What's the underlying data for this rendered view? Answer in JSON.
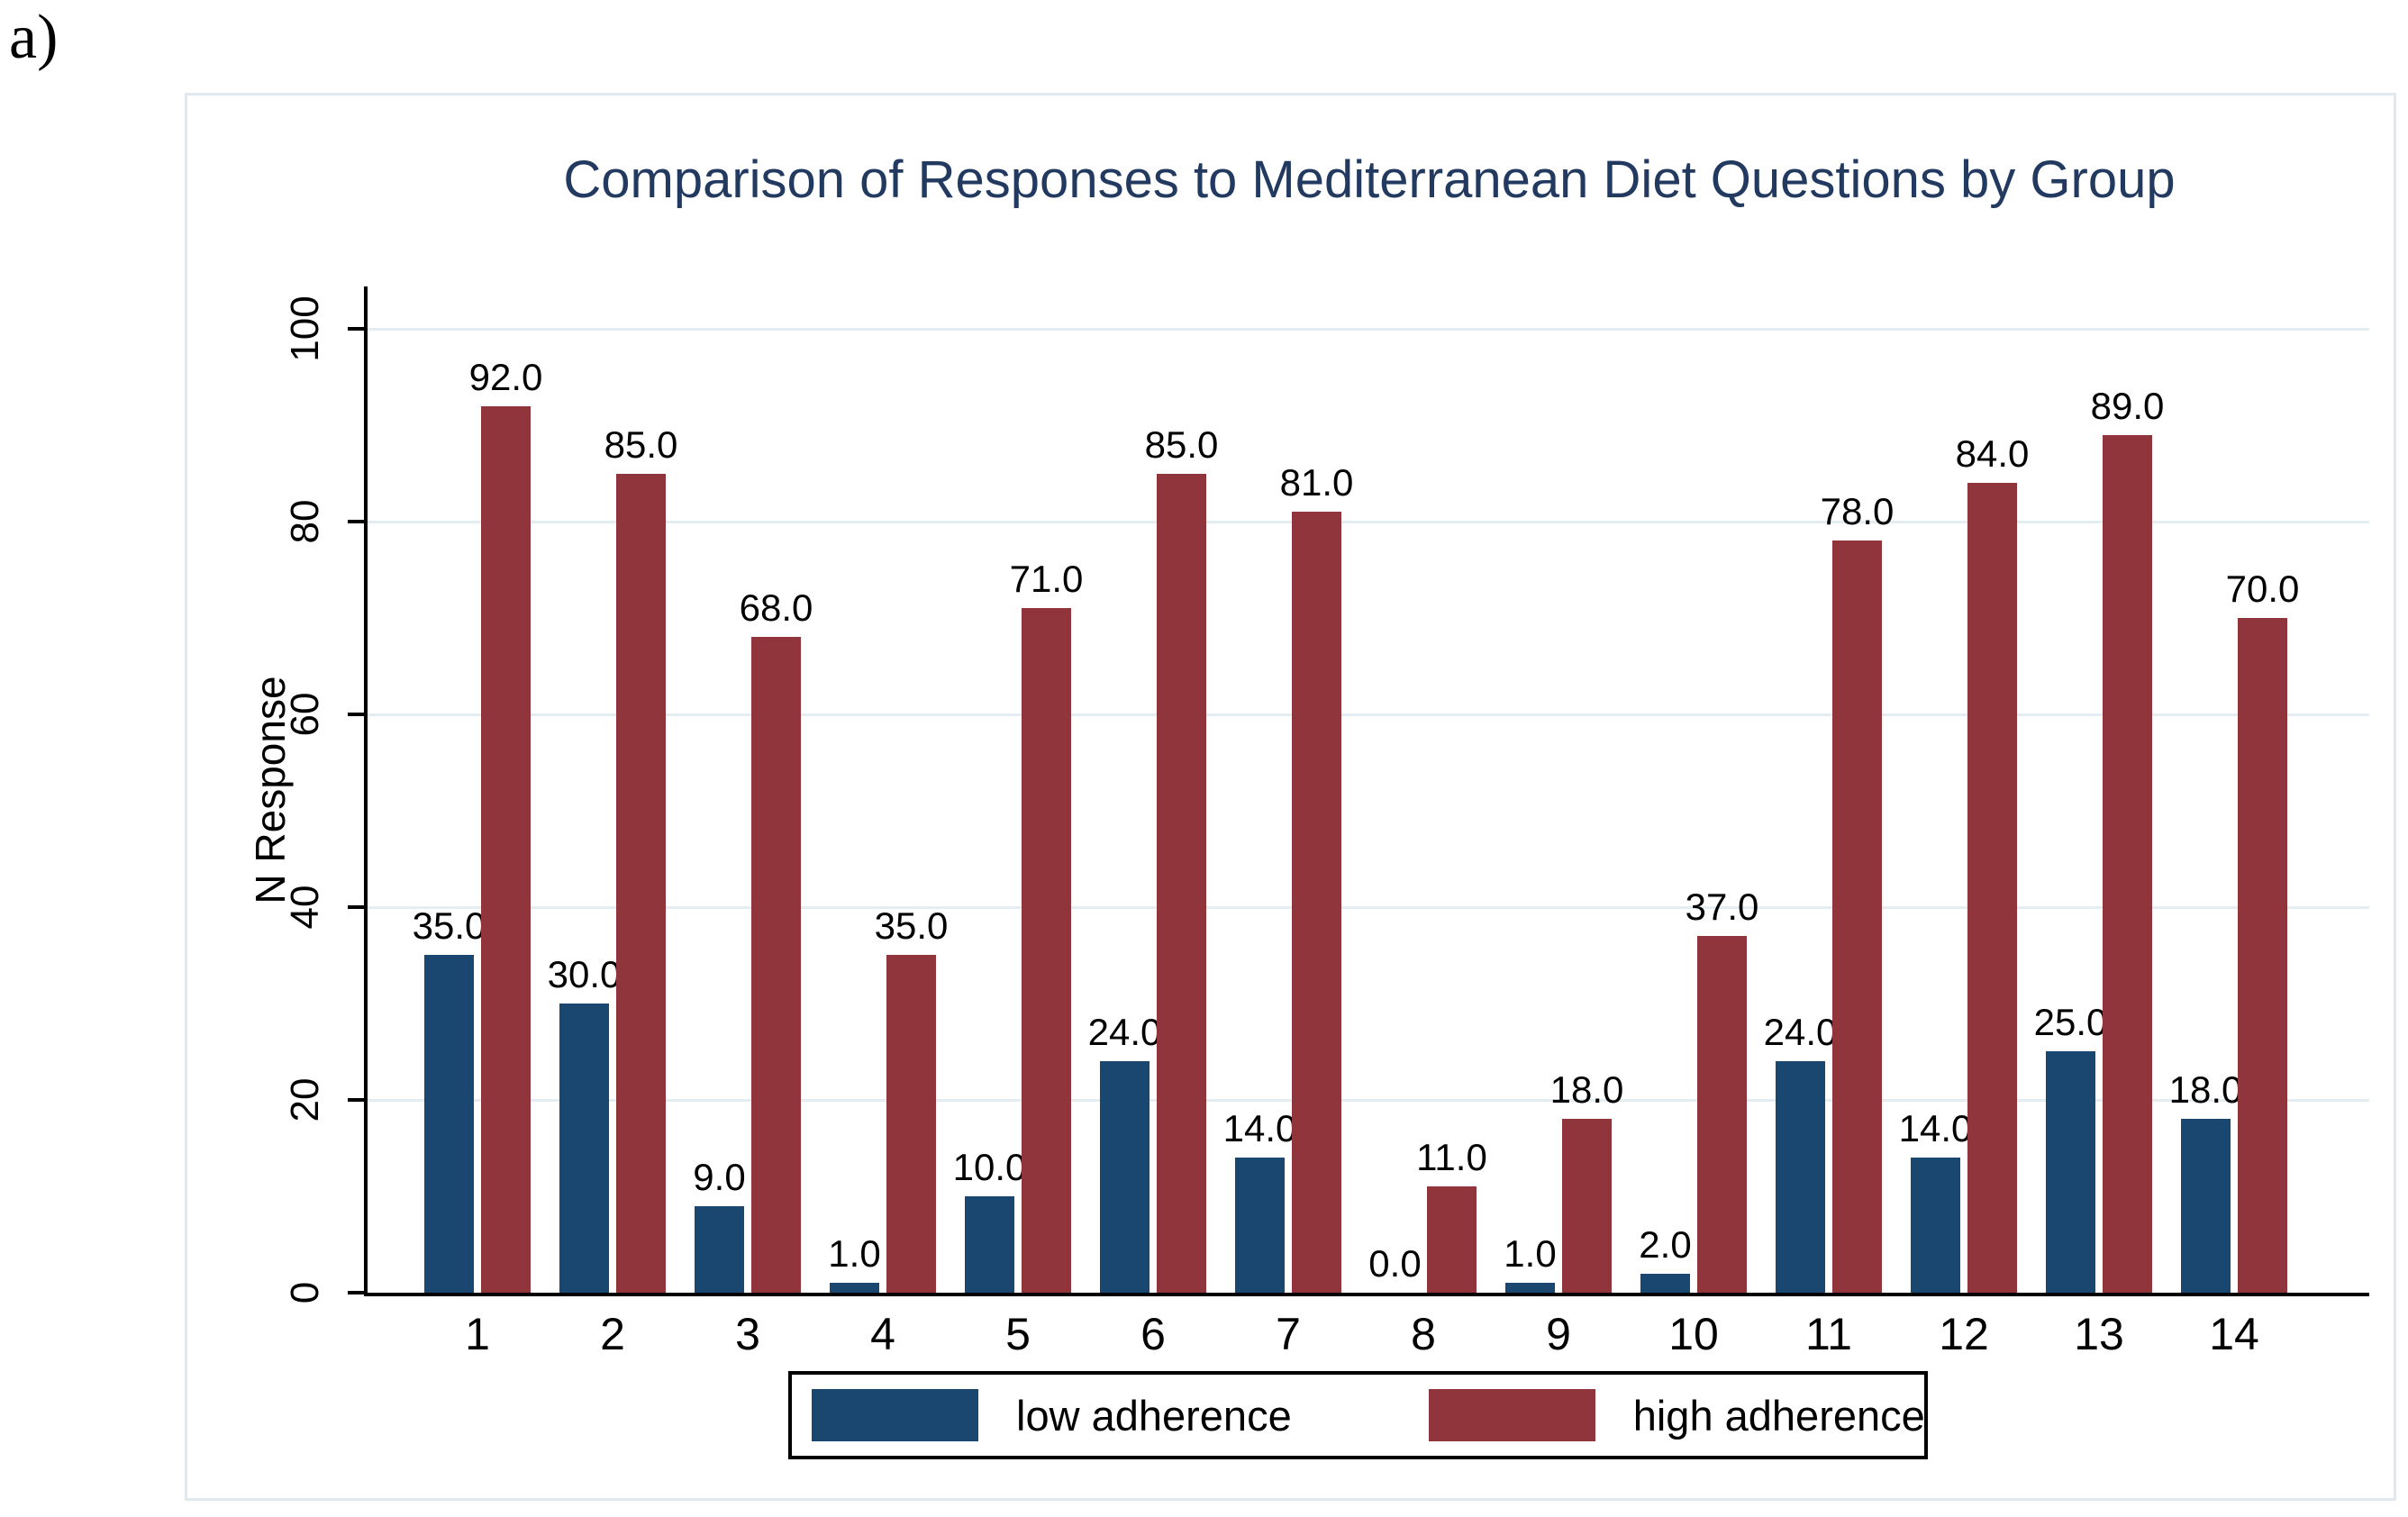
{
  "figure_label": "a)",
  "chart_data": {
    "type": "bar",
    "title": "Comparison of Responses to Mediterranean Diet Questions by Group",
    "xlabel": "",
    "ylabel": "N Response",
    "ylim": [
      0,
      100
    ],
    "yticks": [
      0,
      20,
      40,
      60,
      80,
      100
    ],
    "grid": true,
    "legend_position": "bottom",
    "value_label_format": "one_decimal",
    "categories": [
      "1",
      "2",
      "3",
      "4",
      "5",
      "6",
      "7",
      "8",
      "9",
      "10",
      "11",
      "12",
      "13",
      "14"
    ],
    "series": [
      {
        "name": "low adherence",
        "color": "#1A476F",
        "values": [
          35,
          30,
          9,
          1,
          10,
          24,
          14,
          0,
          1,
          2,
          24,
          14,
          25,
          18
        ],
        "value_labels": [
          "35.0",
          "30.0",
          "9.0",
          "1.0",
          "10.0",
          "24.0",
          "14.0",
          "0.0",
          "1.0",
          "2.0",
          "24.0",
          "14.0",
          "25.0",
          "18.0"
        ]
      },
      {
        "name": "high adherence",
        "color": "#90353B",
        "values": [
          92,
          85,
          68,
          35,
          71,
          85,
          81,
          11,
          18,
          37,
          78,
          84,
          89,
          70
        ],
        "value_labels": [
          "92.0",
          "85.0",
          "68.0",
          "35.0",
          "71.0",
          "85.0",
          "81.0",
          "11.0",
          "18.0",
          "37.0",
          "78.0",
          "84.0",
          "89.0",
          "70.0"
        ]
      }
    ]
  },
  "colors": {
    "title": "#233a60",
    "gridline": "#e4edf2",
    "axis": "#000000",
    "chart_border": "#dfe9ef",
    "background": "#ffffff"
  }
}
